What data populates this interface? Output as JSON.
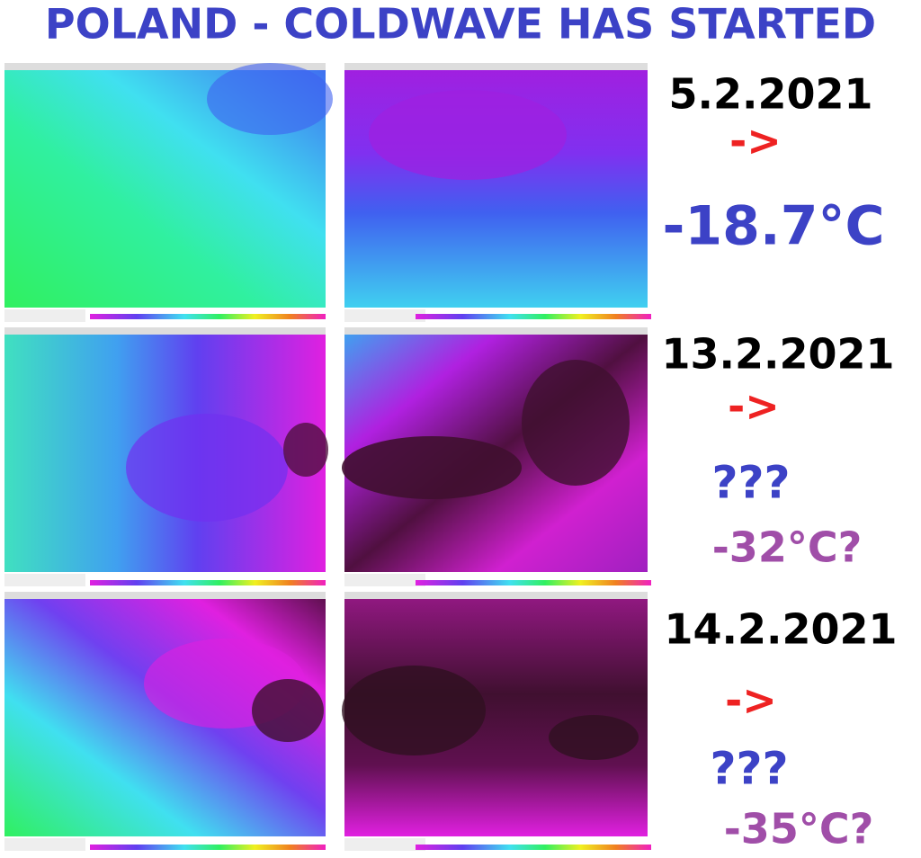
{
  "header": {
    "title": "POLAND - COLDWAVE HAS STARTED"
  },
  "rows": [
    {
      "date": "5.2.2021",
      "arrow": "->",
      "value": "-18.7°C"
    },
    {
      "date": "13.2.2021",
      "arrow": "->",
      "question": "???",
      "value": "-32°C?"
    },
    {
      "date": "14.2.2021",
      "arrow": "->",
      "question": "???",
      "value": "-35°C?"
    }
  ]
}
